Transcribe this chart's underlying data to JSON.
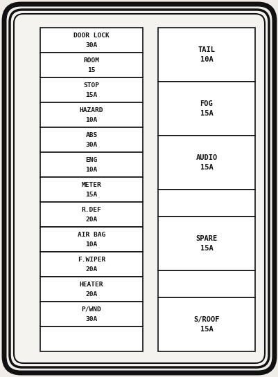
{
  "background_color": "#f0ede8",
  "background_inner": "#f5f3ef",
  "background_box": "#ffffff",
  "border_color": "#111111",
  "text_color": "#111111",
  "figsize": [
    4.02,
    5.45
  ],
  "dpi": 100,
  "left_fuses": [
    {
      "label": "DOOR LOCK\n30A"
    },
    {
      "label": "ROOM\n15"
    },
    {
      "label": "STOP\n15A"
    },
    {
      "label": "HAZARD\n10A"
    },
    {
      "label": "ABS\n30A"
    },
    {
      "label": "ENG\n10A"
    },
    {
      "label": "METER\n15A"
    },
    {
      "label": "R.DEF\n20A"
    },
    {
      "label": "AIR BAG\n10A"
    },
    {
      "label": "F.WIPER\n20A"
    },
    {
      "label": "HEATER\n20A"
    },
    {
      "label": "P/WND\n30A"
    },
    {
      "label": ""
    }
  ],
  "right_fuses": [
    {
      "label": "TAIL\n10A",
      "units": 2
    },
    {
      "label": "FOG\n15A",
      "units": 2
    },
    {
      "label": "AUDIO\n15A",
      "units": 2
    },
    {
      "label": "",
      "units": 1
    },
    {
      "label": "SPARE\n15A",
      "units": 2
    },
    {
      "label": "",
      "units": 1
    },
    {
      "label": "S/ROOF\n15A",
      "units": 2
    }
  ]
}
